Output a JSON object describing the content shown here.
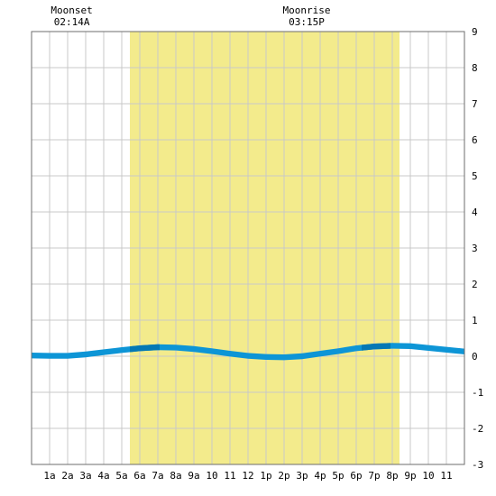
{
  "chart_data": {
    "type": "area",
    "x_unit": "hour",
    "x_ticks": [
      {
        "hour": 1,
        "label": "1a"
      },
      {
        "hour": 2,
        "label": "2a"
      },
      {
        "hour": 3,
        "label": "3a"
      },
      {
        "hour": 4,
        "label": "4a"
      },
      {
        "hour": 5,
        "label": "5a"
      },
      {
        "hour": 6,
        "label": "6a"
      },
      {
        "hour": 7,
        "label": "7a"
      },
      {
        "hour": 8,
        "label": "8a"
      },
      {
        "hour": 9,
        "label": "9a"
      },
      {
        "hour": 10,
        "label": "10"
      },
      {
        "hour": 11,
        "label": "11"
      },
      {
        "hour": 12,
        "label": "12"
      },
      {
        "hour": 13,
        "label": "1p"
      },
      {
        "hour": 14,
        "label": "2p"
      },
      {
        "hour": 15,
        "label": "3p"
      },
      {
        "hour": 16,
        "label": "4p"
      },
      {
        "hour": 17,
        "label": "5p"
      },
      {
        "hour": 18,
        "label": "6p"
      },
      {
        "hour": 19,
        "label": "7p"
      },
      {
        "hour": 20,
        "label": "8p"
      },
      {
        "hour": 21,
        "label": "9p"
      },
      {
        "hour": 22,
        "label": "10"
      },
      {
        "hour": 23,
        "label": "11"
      }
    ],
    "xlim": [
      0,
      24
    ],
    "ylim": [
      -3,
      9
    ],
    "y_ticks": [
      -3,
      -2,
      -1,
      0,
      1,
      2,
      3,
      4,
      5,
      6,
      7,
      8,
      9
    ],
    "grid": true,
    "y_axis_side": "right",
    "daylight": {
      "start_hour": 5.45,
      "end_hour": 20.4
    },
    "series": [
      {
        "x": [
          0,
          1,
          2,
          3,
          4,
          5,
          6,
          7,
          8,
          9,
          10,
          11,
          12,
          13,
          14,
          15,
          16,
          17,
          18,
          19,
          20,
          21,
          22,
          23,
          24
        ],
        "values": [
          0.1,
          0.09,
          0.09,
          0.13,
          0.19,
          0.25,
          0.3,
          0.33,
          0.32,
          0.28,
          0.22,
          0.15,
          0.09,
          0.06,
          0.05,
          0.08,
          0.15,
          0.22,
          0.3,
          0.35,
          0.37,
          0.36,
          0.31,
          0.26,
          0.21
        ]
      }
    ],
    "highlight_bands": [
      {
        "from_hour": 5.45,
        "to_hour": 7.1
      },
      {
        "from_hour": 18.3,
        "to_hour": 19.9
      }
    ],
    "annotations": [
      {
        "id": "moonset",
        "label": "Moonset",
        "time": "02:14A",
        "hour": 2.23
      },
      {
        "id": "moonrise",
        "label": "Moonrise",
        "time": "03:15P",
        "hour": 15.25
      }
    ],
    "colors": {
      "daylight": "#f3eb8c",
      "tide": "#0d95d6",
      "tide_dark": "#0478b4",
      "grid": "#c8c8c8",
      "frame": "#6e6e6e"
    }
  }
}
